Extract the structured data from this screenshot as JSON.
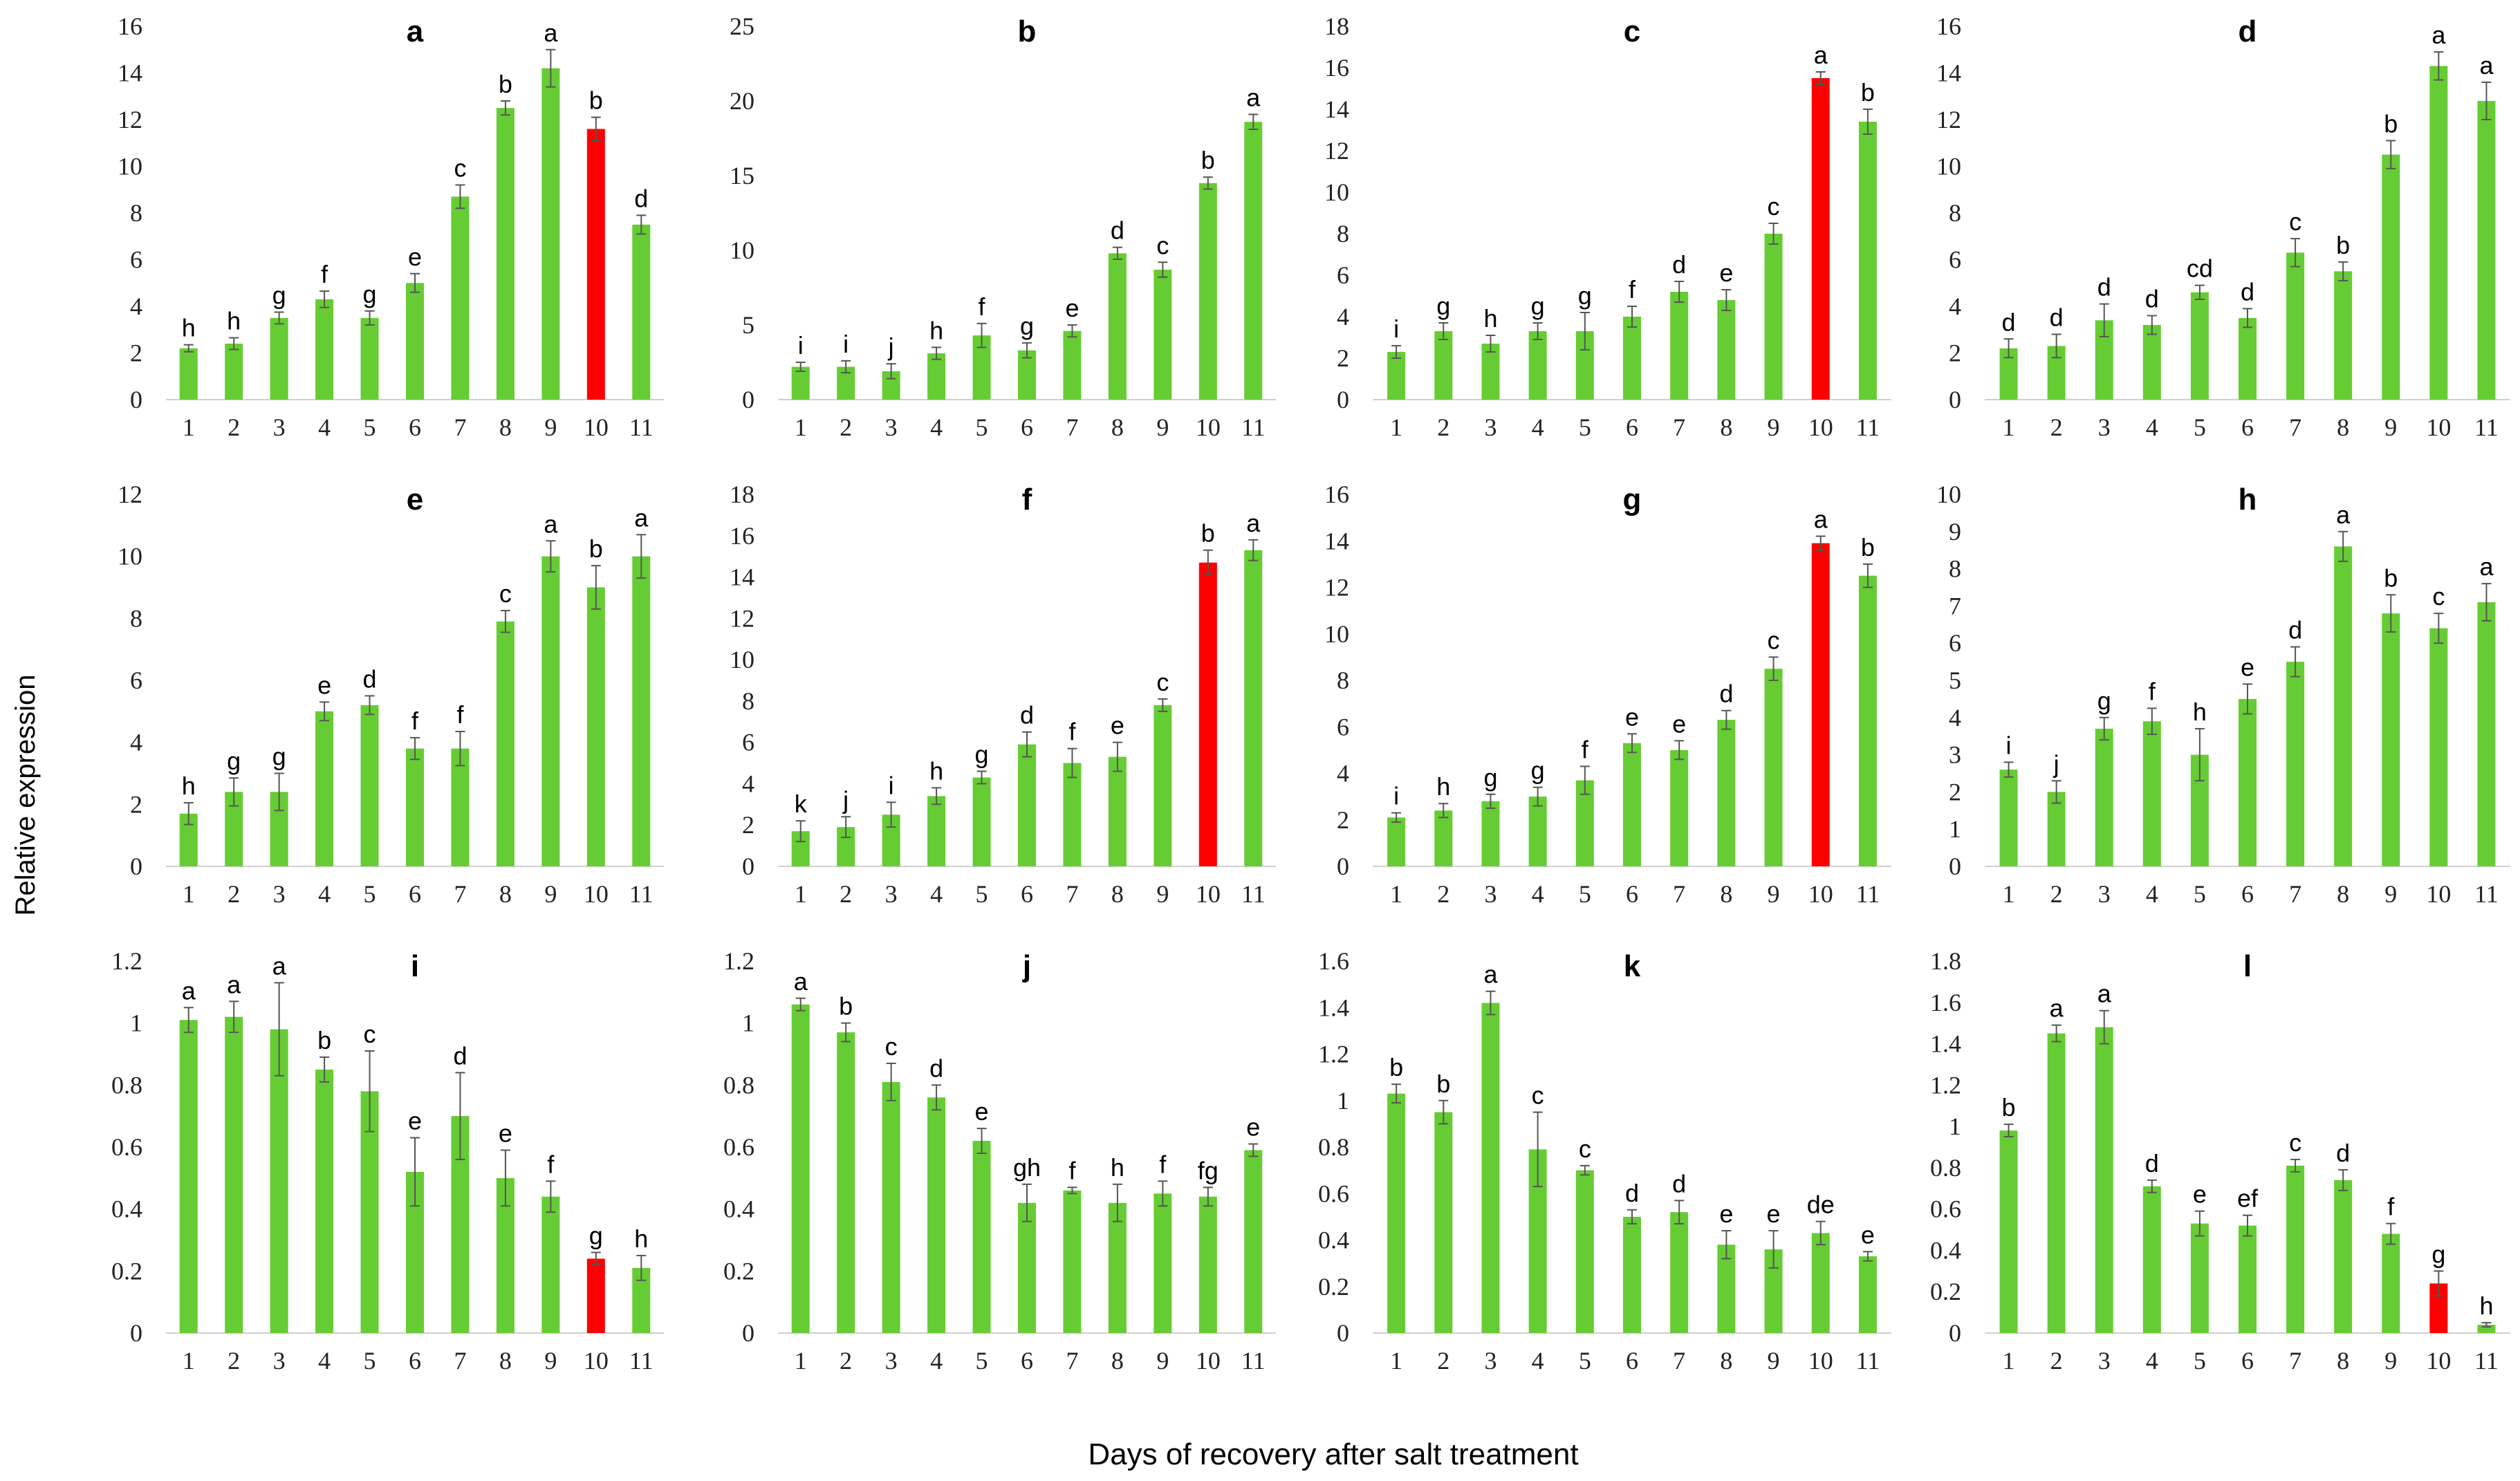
{
  "figure": {
    "ylabel": "Relative expression",
    "xlabel": "Days of recovery after salt treatment",
    "bar_color": "#66cc33",
    "highlight_color": "#ff0000",
    "error_color": "#555555"
  },
  "chart_data": [
    {
      "panel": "a",
      "type": "bar",
      "categories": [
        "1",
        "2",
        "3",
        "4",
        "5",
        "6",
        "7",
        "8",
        "9",
        "10",
        "11"
      ],
      "ylim": [
        0,
        16
      ],
      "yticks": [
        "0",
        "2",
        "4",
        "6",
        "8",
        "10",
        "12",
        "14",
        "16"
      ],
      "values": [
        2.2,
        2.4,
        3.5,
        4.3,
        3.5,
        5.0,
        8.7,
        12.5,
        14.2,
        11.6,
        7.5
      ],
      "errors": [
        0.15,
        0.25,
        0.25,
        0.35,
        0.3,
        0.4,
        0.5,
        0.3,
        0.8,
        0.5,
        0.4
      ],
      "letters": [
        "h",
        "h",
        "g",
        "f",
        "g",
        "e",
        "c",
        "b",
        "a",
        "b",
        "d"
      ],
      "highlight": [
        10
      ]
    },
    {
      "panel": "b",
      "type": "bar",
      "categories": [
        "1",
        "2",
        "3",
        "4",
        "5",
        "6",
        "7",
        "8",
        "9",
        "10",
        "11"
      ],
      "ylim": [
        0,
        25
      ],
      "yticks": [
        "0",
        "5",
        "10",
        "15",
        "20",
        "25"
      ],
      "values": [
        2.2,
        2.2,
        1.9,
        3.1,
        4.3,
        3.3,
        4.6,
        9.8,
        8.7,
        14.5,
        18.6
      ],
      "errors": [
        0.3,
        0.4,
        0.5,
        0.4,
        0.8,
        0.5,
        0.4,
        0.4,
        0.5,
        0.4,
        0.5
      ],
      "letters": [
        "i",
        "i",
        "j",
        "h",
        "f",
        "g",
        "e",
        "d",
        "c",
        "b",
        "a"
      ],
      "highlight": []
    },
    {
      "panel": "c",
      "type": "bar",
      "categories": [
        "1",
        "2",
        "3",
        "4",
        "5",
        "6",
        "7",
        "8",
        "9",
        "10",
        "11"
      ],
      "ylim": [
        0,
        18
      ],
      "yticks": [
        "0",
        "2",
        "4",
        "6",
        "8",
        "10",
        "12",
        "14",
        "16",
        "18"
      ],
      "values": [
        2.3,
        3.3,
        2.7,
        3.3,
        3.3,
        4.0,
        5.2,
        4.8,
        8.0,
        15.5,
        13.4
      ],
      "errors": [
        0.3,
        0.4,
        0.4,
        0.4,
        0.9,
        0.5,
        0.5,
        0.5,
        0.5,
        0.3,
        0.6
      ],
      "letters": [
        "i",
        "g",
        "h",
        "g",
        "g",
        "f",
        "d",
        "e",
        "c",
        "a",
        "b"
      ],
      "highlight": [
        10
      ]
    },
    {
      "panel": "d",
      "type": "bar",
      "categories": [
        "1",
        "2",
        "3",
        "4",
        "5",
        "6",
        "7",
        "8",
        "9",
        "10",
        "11"
      ],
      "ylim": [
        0,
        16
      ],
      "yticks": [
        "0",
        "2",
        "4",
        "6",
        "8",
        "10",
        "12",
        "14",
        "16"
      ],
      "values": [
        2.2,
        2.3,
        3.4,
        3.2,
        4.6,
        3.5,
        6.3,
        5.5,
        10.5,
        14.3,
        12.8
      ],
      "errors": [
        0.4,
        0.5,
        0.7,
        0.4,
        0.3,
        0.4,
        0.6,
        0.4,
        0.6,
        0.6,
        0.8
      ],
      "letters": [
        "d",
        "d",
        "d",
        "d",
        "cd",
        "d",
        "c",
        "b",
        "b",
        "a",
        "a"
      ],
      "highlight": []
    },
    {
      "panel": "e",
      "type": "bar",
      "categories": [
        "1",
        "2",
        "3",
        "4",
        "5",
        "6",
        "7",
        "8",
        "9",
        "10",
        "11"
      ],
      "ylim": [
        0,
        12
      ],
      "yticks": [
        "0",
        "2",
        "4",
        "6",
        "8",
        "10",
        "12"
      ],
      "values": [
        1.7,
        2.4,
        2.4,
        5.0,
        5.2,
        3.8,
        3.8,
        7.9,
        10.0,
        9.0,
        10.0
      ],
      "errors": [
        0.35,
        0.45,
        0.6,
        0.3,
        0.3,
        0.35,
        0.55,
        0.35,
        0.5,
        0.7,
        0.7
      ],
      "letters": [
        "h",
        "g",
        "g",
        "e",
        "d",
        "f",
        "f",
        "c",
        "a",
        "b",
        "a"
      ],
      "highlight": []
    },
    {
      "panel": "f",
      "type": "bar",
      "categories": [
        "1",
        "2",
        "3",
        "4",
        "5",
        "6",
        "7",
        "8",
        "9",
        "10",
        "11"
      ],
      "ylim": [
        0,
        18
      ],
      "yticks": [
        "0",
        "2",
        "4",
        "6",
        "8",
        "10",
        "12",
        "14",
        "16",
        "18"
      ],
      "values": [
        1.7,
        1.9,
        2.5,
        3.4,
        4.3,
        5.9,
        5.0,
        5.3,
        7.8,
        14.7,
        15.3
      ],
      "errors": [
        0.5,
        0.5,
        0.6,
        0.4,
        0.3,
        0.6,
        0.7,
        0.7,
        0.3,
        0.6,
        0.5
      ],
      "letters": [
        "k",
        "j",
        "i",
        "h",
        "g",
        "d",
        "f",
        "e",
        "c",
        "b",
        "a"
      ],
      "highlight": [
        10
      ]
    },
    {
      "panel": "g",
      "type": "bar",
      "categories": [
        "1",
        "2",
        "3",
        "4",
        "5",
        "6",
        "7",
        "8",
        "9",
        "10",
        "11"
      ],
      "ylim": [
        0,
        16
      ],
      "yticks": [
        "0",
        "2",
        "4",
        "6",
        "8",
        "10",
        "12",
        "14",
        "16"
      ],
      "values": [
        2.1,
        2.4,
        2.8,
        3.0,
        3.7,
        5.3,
        5.0,
        6.3,
        8.5,
        13.9,
        12.5
      ],
      "errors": [
        0.2,
        0.3,
        0.3,
        0.4,
        0.6,
        0.4,
        0.4,
        0.4,
        0.5,
        0.3,
        0.5
      ],
      "letters": [
        "i",
        "h",
        "g",
        "g",
        "f",
        "e",
        "e",
        "d",
        "c",
        "a",
        "b"
      ],
      "highlight": [
        10
      ]
    },
    {
      "panel": "h",
      "type": "bar",
      "categories": [
        "1",
        "2",
        "3",
        "4",
        "5",
        "6",
        "7",
        "8",
        "9",
        "10",
        "11"
      ],
      "ylim": [
        0,
        10
      ],
      "yticks": [
        "0",
        "1",
        "2",
        "3",
        "4",
        "5",
        "6",
        "7",
        "8",
        "9",
        "10"
      ],
      "values": [
        2.6,
        2.0,
        3.7,
        3.9,
        3.0,
        4.5,
        5.5,
        8.6,
        6.8,
        6.4,
        7.1
      ],
      "errors": [
        0.2,
        0.3,
        0.3,
        0.35,
        0.7,
        0.4,
        0.4,
        0.4,
        0.5,
        0.4,
        0.5
      ],
      "letters": [
        "i",
        "j",
        "g",
        "f",
        "h",
        "e",
        "d",
        "a",
        "b",
        "c",
        "a"
      ],
      "highlight": []
    },
    {
      "panel": "i",
      "type": "bar",
      "categories": [
        "1",
        "2",
        "3",
        "4",
        "5",
        "6",
        "7",
        "8",
        "9",
        "10",
        "11"
      ],
      "ylim": [
        0,
        1.2
      ],
      "yticks": [
        "0",
        "0.2",
        "0.4",
        "0.6",
        "0.8",
        "1",
        "1.2"
      ],
      "values": [
        1.01,
        1.02,
        0.98,
        0.85,
        0.78,
        0.52,
        0.7,
        0.5,
        0.44,
        0.24,
        0.21
      ],
      "errors": [
        0.04,
        0.05,
        0.15,
        0.04,
        0.13,
        0.11,
        0.14,
        0.09,
        0.05,
        0.02,
        0.04
      ],
      "letters": [
        "a",
        "a",
        "a",
        "b",
        "c",
        "e",
        "d",
        "e",
        "f",
        "g",
        "h"
      ],
      "highlight": [
        10
      ]
    },
    {
      "panel": "j",
      "type": "bar",
      "categories": [
        "1",
        "2",
        "3",
        "4",
        "5",
        "6",
        "7",
        "8",
        "9",
        "10",
        "11"
      ],
      "ylim": [
        0,
        1.2
      ],
      "yticks": [
        "0",
        "0.2",
        "0.4",
        "0.6",
        "0.8",
        "1",
        "1.2"
      ],
      "values": [
        1.06,
        0.97,
        0.81,
        0.76,
        0.62,
        0.42,
        0.46,
        0.42,
        0.45,
        0.44,
        0.59
      ],
      "errors": [
        0.02,
        0.03,
        0.06,
        0.04,
        0.04,
        0.06,
        0.01,
        0.06,
        0.04,
        0.03,
        0.02
      ],
      "letters": [
        "a",
        "b",
        "c",
        "d",
        "e",
        "gh",
        "f",
        "h",
        "f",
        "fg",
        "e"
      ],
      "highlight": []
    },
    {
      "panel": "k",
      "type": "bar",
      "categories": [
        "1",
        "2",
        "3",
        "4",
        "5",
        "6",
        "7",
        "8",
        "9",
        "10",
        "11"
      ],
      "ylim": [
        0,
        1.6
      ],
      "yticks": [
        "0",
        "0.2",
        "0.4",
        "0.6",
        "0.8",
        "1",
        "1.2",
        "1.4",
        "1.6"
      ],
      "values": [
        1.03,
        0.95,
        1.42,
        0.79,
        0.7,
        0.5,
        0.52,
        0.38,
        0.36,
        0.43,
        0.33
      ],
      "errors": [
        0.04,
        0.05,
        0.05,
        0.16,
        0.02,
        0.03,
        0.05,
        0.06,
        0.08,
        0.05,
        0.02
      ],
      "letters": [
        "b",
        "b",
        "a",
        "c",
        "c",
        "d",
        "d",
        "e",
        "e",
        "de",
        "e"
      ],
      "highlight": []
    },
    {
      "panel": "l",
      "type": "bar",
      "categories": [
        "1",
        "2",
        "3",
        "4",
        "5",
        "6",
        "7",
        "8",
        "9",
        "10",
        "11"
      ],
      "ylim": [
        0,
        1.8
      ],
      "yticks": [
        "0",
        "0.2",
        "0.4",
        "0.6",
        "0.8",
        "1",
        "1.2",
        "1.4",
        "1.6",
        "1.8"
      ],
      "values": [
        0.98,
        1.45,
        1.48,
        0.71,
        0.53,
        0.52,
        0.81,
        0.74,
        0.48,
        0.24,
        0.04
      ],
      "errors": [
        0.03,
        0.04,
        0.08,
        0.03,
        0.06,
        0.05,
        0.03,
        0.05,
        0.05,
        0.06,
        0.01
      ],
      "letters": [
        "b",
        "a",
        "a",
        "d",
        "e",
        "ef",
        "c",
        "d",
        "f",
        "g",
        "h"
      ],
      "highlight": [
        10
      ]
    }
  ]
}
